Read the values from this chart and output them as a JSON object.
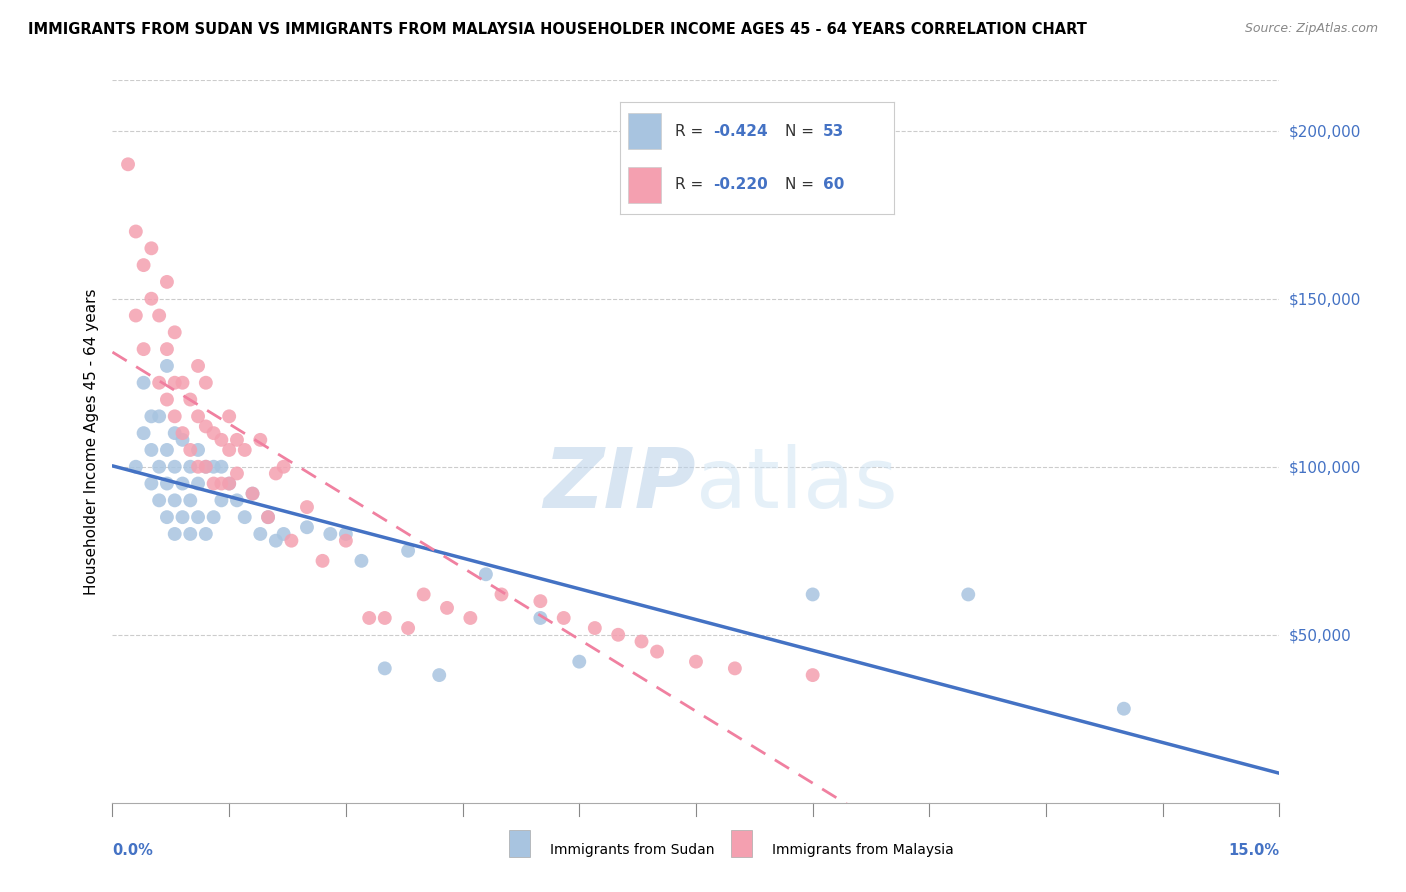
{
  "title": "IMMIGRANTS FROM SUDAN VS IMMIGRANTS FROM MALAYSIA HOUSEHOLDER INCOME AGES 45 - 64 YEARS CORRELATION CHART",
  "source": "Source: ZipAtlas.com",
  "ylabel": "Householder Income Ages 45 - 64 years",
  "ytick_labels": [
    "$50,000",
    "$100,000",
    "$150,000",
    "$200,000"
  ],
  "ytick_values": [
    50000,
    100000,
    150000,
    200000
  ],
  "ylim": [
    0,
    215000
  ],
  "xlim": [
    0,
    0.15
  ],
  "sudan_R": -0.424,
  "sudan_N": 53,
  "malaysia_R": -0.22,
  "malaysia_N": 60,
  "sudan_color": "#a8c4e0",
  "malaysia_color": "#f4a0b0",
  "sudan_line_color": "#4472c4",
  "malaysia_line_color": "#f080a0",
  "watermark_zip": "ZIP",
  "watermark_atlas": "atlas",
  "legend_label_sudan": "Immigrants from Sudan",
  "legend_label_malaysia": "Immigrants from Malaysia",
  "sudan_x": [
    0.003,
    0.004,
    0.004,
    0.005,
    0.005,
    0.005,
    0.006,
    0.006,
    0.006,
    0.007,
    0.007,
    0.007,
    0.007,
    0.008,
    0.008,
    0.008,
    0.008,
    0.009,
    0.009,
    0.009,
    0.01,
    0.01,
    0.01,
    0.011,
    0.011,
    0.011,
    0.012,
    0.012,
    0.013,
    0.013,
    0.014,
    0.014,
    0.015,
    0.016,
    0.017,
    0.018,
    0.019,
    0.02,
    0.021,
    0.022,
    0.025,
    0.028,
    0.03,
    0.032,
    0.035,
    0.038,
    0.042,
    0.048,
    0.055,
    0.06,
    0.09,
    0.11,
    0.13
  ],
  "sudan_y": [
    100000,
    110000,
    125000,
    95000,
    105000,
    115000,
    90000,
    100000,
    115000,
    85000,
    95000,
    105000,
    130000,
    80000,
    90000,
    100000,
    110000,
    85000,
    95000,
    108000,
    80000,
    90000,
    100000,
    85000,
    95000,
    105000,
    80000,
    100000,
    85000,
    100000,
    90000,
    100000,
    95000,
    90000,
    85000,
    92000,
    80000,
    85000,
    78000,
    80000,
    82000,
    80000,
    80000,
    72000,
    40000,
    75000,
    38000,
    68000,
    55000,
    42000,
    62000,
    62000,
    28000
  ],
  "malaysia_x": [
    0.002,
    0.003,
    0.003,
    0.004,
    0.004,
    0.005,
    0.005,
    0.006,
    0.006,
    0.007,
    0.007,
    0.007,
    0.008,
    0.008,
    0.008,
    0.009,
    0.009,
    0.01,
    0.01,
    0.011,
    0.011,
    0.011,
    0.012,
    0.012,
    0.012,
    0.013,
    0.013,
    0.014,
    0.014,
    0.015,
    0.015,
    0.015,
    0.016,
    0.016,
    0.017,
    0.018,
    0.019,
    0.02,
    0.021,
    0.022,
    0.023,
    0.025,
    0.027,
    0.03,
    0.033,
    0.035,
    0.038,
    0.04,
    0.043,
    0.046,
    0.05,
    0.055,
    0.058,
    0.062,
    0.065,
    0.068,
    0.07,
    0.075,
    0.08,
    0.09
  ],
  "malaysia_y": [
    190000,
    170000,
    145000,
    160000,
    135000,
    150000,
    165000,
    125000,
    145000,
    120000,
    135000,
    155000,
    115000,
    125000,
    140000,
    110000,
    125000,
    105000,
    120000,
    100000,
    115000,
    130000,
    100000,
    112000,
    125000,
    95000,
    110000,
    95000,
    108000,
    95000,
    105000,
    115000,
    98000,
    108000,
    105000,
    92000,
    108000,
    85000,
    98000,
    100000,
    78000,
    88000,
    72000,
    78000,
    55000,
    55000,
    52000,
    62000,
    58000,
    55000,
    62000,
    60000,
    55000,
    52000,
    50000,
    48000,
    45000,
    42000,
    40000,
    38000
  ]
}
